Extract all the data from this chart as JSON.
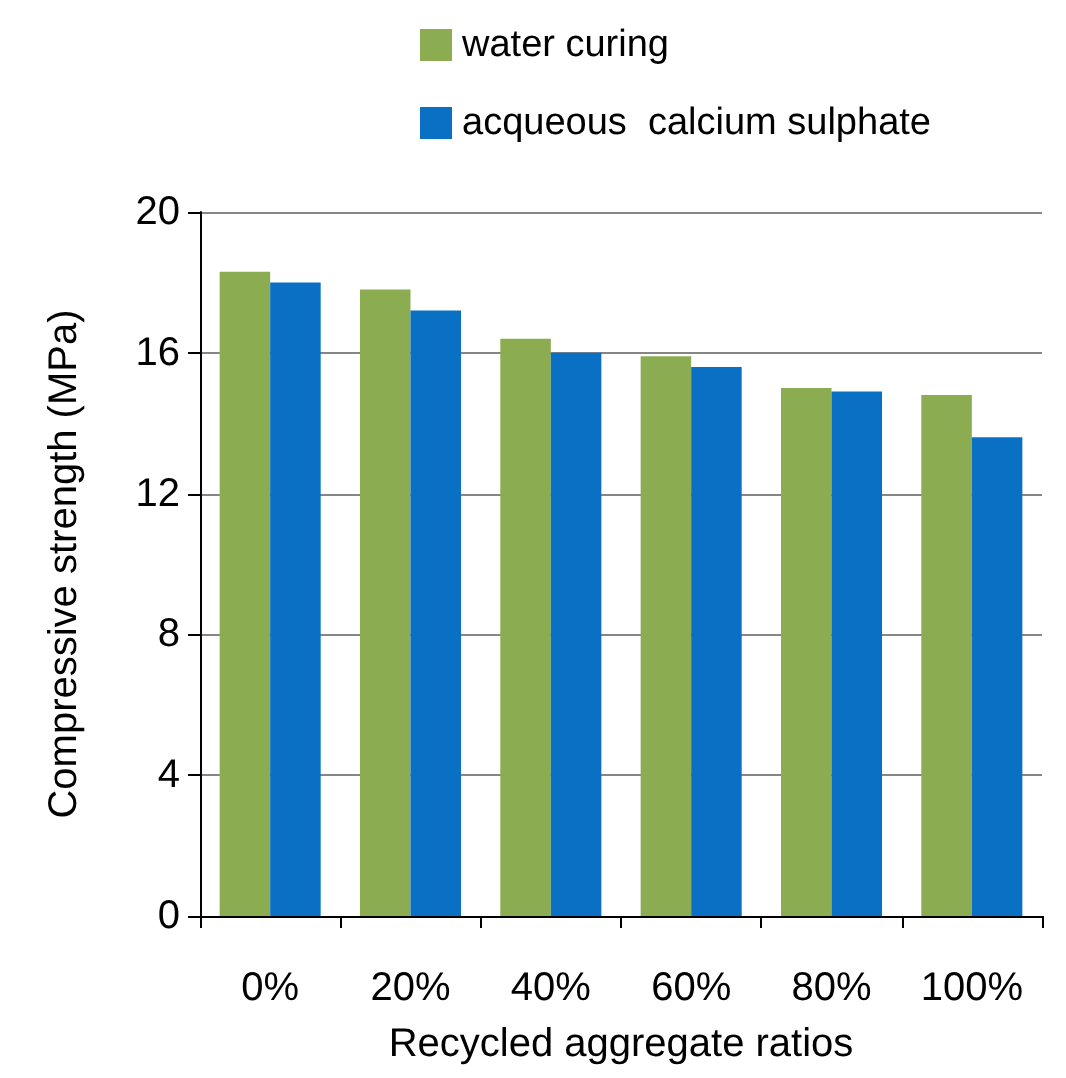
{
  "chart_data": {
    "type": "bar",
    "xlabel": "Recycled aggregate ratios",
    "ylabel": "Compressive strength (MPa)",
    "categories": [
      "0%",
      "20%",
      "40%",
      "60%",
      "80%",
      "100%"
    ],
    "series": [
      {
        "name": "water curing",
        "color": "#8cac52",
        "values": [
          18.3,
          17.8,
          16.4,
          15.9,
          15.0,
          14.8
        ]
      },
      {
        "name": "acqueous  calcium sulphate",
        "color": "#0a70c4",
        "values": [
          18.0,
          17.2,
          16.0,
          15.6,
          14.9,
          13.6
        ]
      }
    ],
    "ylim": [
      0,
      20
    ],
    "yticks": [
      0,
      4,
      8,
      12,
      16,
      20
    ],
    "grid": "y",
    "legend": "top"
  }
}
